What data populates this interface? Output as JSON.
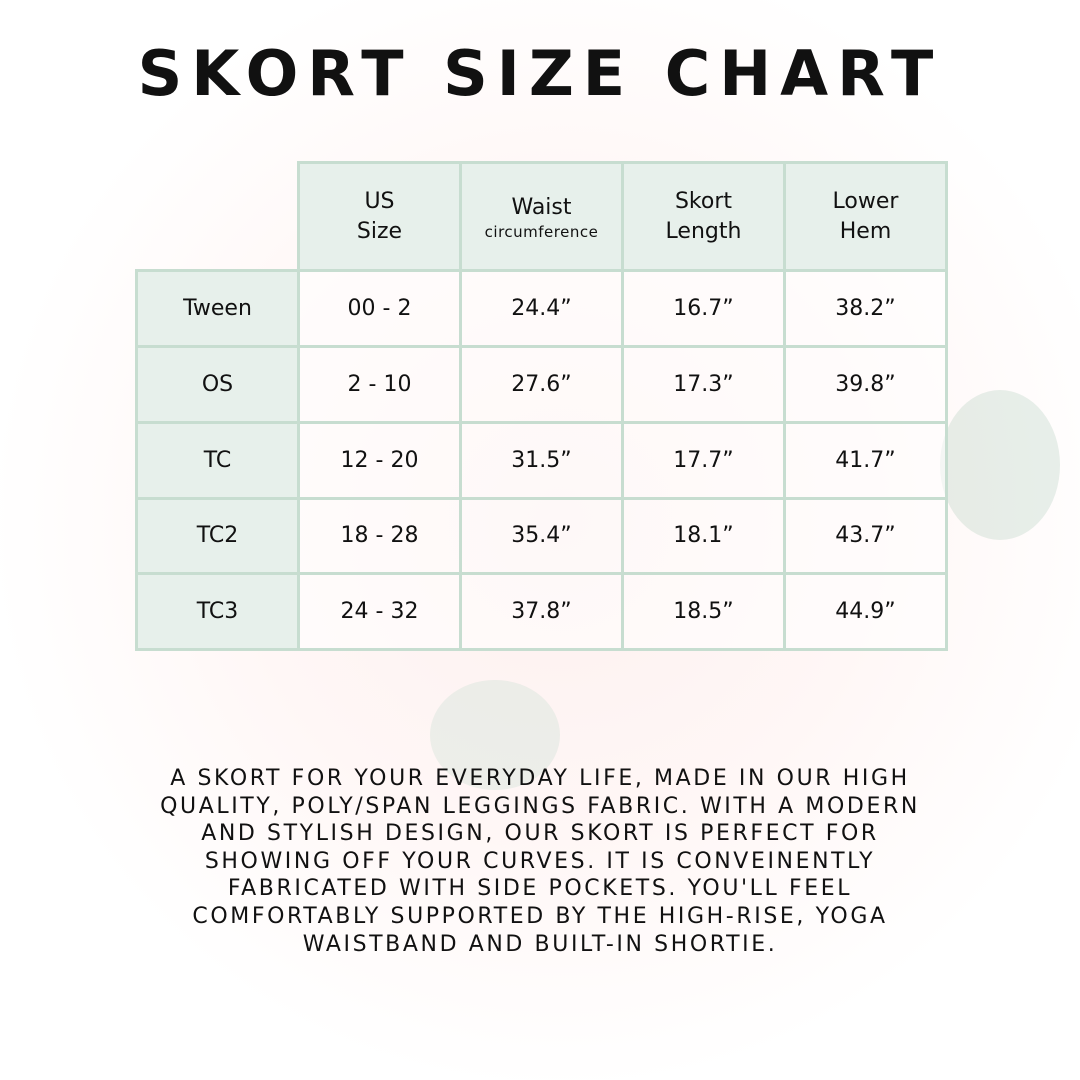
{
  "title": "SKORT SIZE CHART",
  "table": {
    "headers": [
      {
        "main": "US Size",
        "lines": [
          "US",
          "Size"
        ],
        "sub": ""
      },
      {
        "main": "Waist",
        "lines": [
          "Waist"
        ],
        "sub": "circumference"
      },
      {
        "main": "Skort Length",
        "lines": [
          "Skort",
          "Length"
        ],
        "sub": ""
      },
      {
        "main": "Lower Hem",
        "lines": [
          "Lower",
          "Hem"
        ],
        "sub": ""
      }
    ],
    "rows": [
      {
        "label": "Tween",
        "cells": [
          "00 - 2",
          "24.4”",
          "16.7”",
          "38.2”"
        ]
      },
      {
        "label": "OS",
        "cells": [
          "2 - 10",
          "27.6”",
          "17.3”",
          "39.8”"
        ]
      },
      {
        "label": "TC",
        "cells": [
          "12 - 20",
          "31.5”",
          "17.7”",
          "41.7”"
        ]
      },
      {
        "label": "TC2",
        "cells": [
          "18 - 28",
          "35.4”",
          "18.1”",
          "43.7”"
        ]
      },
      {
        "label": "TC3",
        "cells": [
          "24 - 32",
          "37.8”",
          "18.5”",
          "44.9”"
        ]
      }
    ]
  },
  "description": {
    "lines": [
      "A SKORT FOR YOUR EVERYDAY LIFE, MADE IN OUR HIGH",
      "QUALITY, POLY/SPAN LEGGINGS FABRIC. WITH A MODERN",
      "AND STYLISH DESIGN, OUR SKORT IS PERFECT FOR",
      "SHOWING OFF YOUR CURVES. IT IS CONVEINENTLY",
      "FABRICATED WITH SIDE POCKETS. YOU'LL FEEL",
      "COMFORTABLY SUPPORTED BY THE HIGH-RISE, YOGA",
      "WAISTBAND AND BUILT-IN SHORTIE."
    ]
  },
  "colors": {
    "cell_border": "#c7ddd0",
    "header_bg": "#e7f0eb",
    "text": "#111111"
  }
}
